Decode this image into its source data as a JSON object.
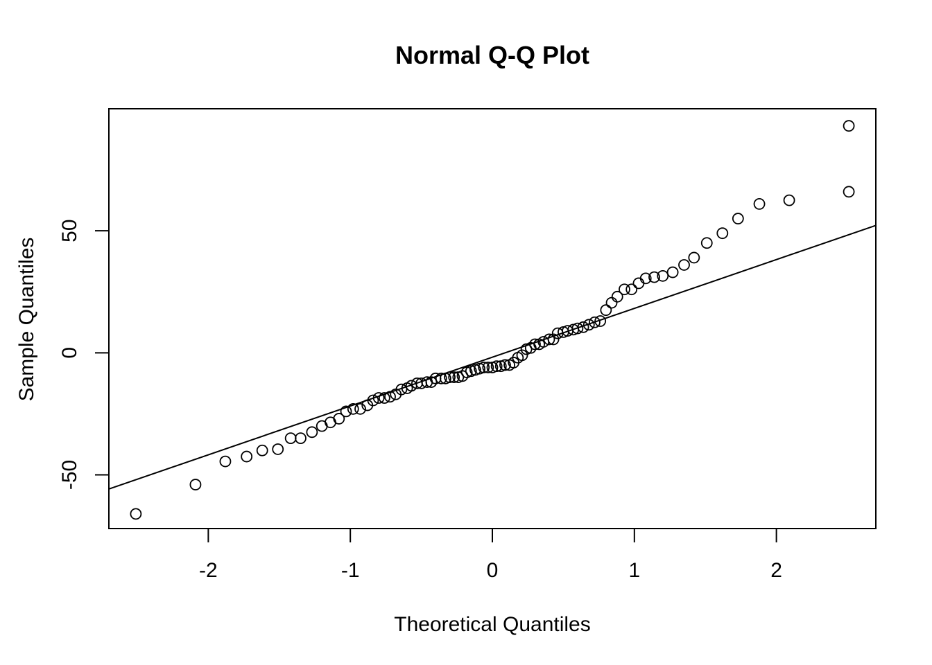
{
  "chart_data": {
    "type": "scatter",
    "title": "Normal Q-Q Plot",
    "xlabel": "Theoretical Quantiles",
    "ylabel": "Sample Quantiles",
    "xlim": [
      -2.7,
      2.7
    ],
    "ylim": [
      -72,
      100
    ],
    "xticks": [
      -2,
      -1,
      0,
      1,
      2
    ],
    "xtick_labels": [
      "-2",
      "-1",
      "0",
      "1",
      "2"
    ],
    "yticks": [
      -50,
      0,
      50
    ],
    "ytick_labels": [
      "-50",
      "0",
      "50"
    ],
    "grid": false,
    "legend": "none",
    "reference_line": {
      "intercept": -1.8,
      "slope": 20.0
    },
    "points": [
      {
        "x": -2.51,
        "y": -66
      },
      {
        "x": -2.09,
        "y": -54
      },
      {
        "x": -1.88,
        "y": -44.5
      },
      {
        "x": -1.73,
        "y": -42.5
      },
      {
        "x": -1.62,
        "y": -40
      },
      {
        "x": -1.51,
        "y": -39.5
      },
      {
        "x": -1.42,
        "y": -35
      },
      {
        "x": -1.35,
        "y": -35
      },
      {
        "x": -1.27,
        "y": -32.5
      },
      {
        "x": -1.2,
        "y": -30
      },
      {
        "x": -1.14,
        "y": -28.5
      },
      {
        "x": -1.08,
        "y": -27
      },
      {
        "x": -1.03,
        "y": -24
      },
      {
        "x": -0.98,
        "y": -23
      },
      {
        "x": -0.93,
        "y": -23
      },
      {
        "x": -0.88,
        "y": -21.5
      },
      {
        "x": -0.84,
        "y": -19.5
      },
      {
        "x": -0.8,
        "y": -18.5
      },
      {
        "x": -0.76,
        "y": -18.5
      },
      {
        "x": -0.72,
        "y": -18
      },
      {
        "x": -0.68,
        "y": -17
      },
      {
        "x": -0.64,
        "y": -15
      },
      {
        "x": -0.6,
        "y": -14.5
      },
      {
        "x": -0.57,
        "y": -13.5
      },
      {
        "x": -0.53,
        "y": -12.5
      },
      {
        "x": -0.5,
        "y": -12.5
      },
      {
        "x": -0.46,
        "y": -12
      },
      {
        "x": -0.43,
        "y": -12
      },
      {
        "x": -0.4,
        "y": -10.5
      },
      {
        "x": -0.36,
        "y": -10.5
      },
      {
        "x": -0.33,
        "y": -10.5
      },
      {
        "x": -0.3,
        "y": -10
      },
      {
        "x": -0.27,
        "y": -10
      },
      {
        "x": -0.24,
        "y": -10
      },
      {
        "x": -0.21,
        "y": -9.5
      },
      {
        "x": -0.18,
        "y": -8
      },
      {
        "x": -0.15,
        "y": -7.5
      },
      {
        "x": -0.12,
        "y": -7
      },
      {
        "x": -0.09,
        "y": -6.5
      },
      {
        "x": -0.06,
        "y": -6
      },
      {
        "x": -0.03,
        "y": -6
      },
      {
        "x": 0.0,
        "y": -6
      },
      {
        "x": 0.03,
        "y": -5.5
      },
      {
        "x": 0.06,
        "y": -5.5
      },
      {
        "x": 0.09,
        "y": -5
      },
      {
        "x": 0.12,
        "y": -5
      },
      {
        "x": 0.15,
        "y": -4
      },
      {
        "x": 0.18,
        "y": -2
      },
      {
        "x": 0.21,
        "y": -1
      },
      {
        "x": 0.24,
        "y": 1.5
      },
      {
        "x": 0.27,
        "y": 2
      },
      {
        "x": 0.3,
        "y": 3.5
      },
      {
        "x": 0.33,
        "y": 3.5
      },
      {
        "x": 0.36,
        "y": 4.5
      },
      {
        "x": 0.4,
        "y": 5.5
      },
      {
        "x": 0.43,
        "y": 5.5
      },
      {
        "x": 0.46,
        "y": 8
      },
      {
        "x": 0.5,
        "y": 8.5
      },
      {
        "x": 0.53,
        "y": 9
      },
      {
        "x": 0.57,
        "y": 9.5
      },
      {
        "x": 0.6,
        "y": 10
      },
      {
        "x": 0.64,
        "y": 10.5
      },
      {
        "x": 0.68,
        "y": 11.5
      },
      {
        "x": 0.72,
        "y": 12.5
      },
      {
        "x": 0.76,
        "y": 13
      },
      {
        "x": 0.8,
        "y": 17.5
      },
      {
        "x": 0.84,
        "y": 20.5
      },
      {
        "x": 0.88,
        "y": 23
      },
      {
        "x": 0.93,
        "y": 26
      },
      {
        "x": 0.98,
        "y": 26
      },
      {
        "x": 1.03,
        "y": 28.5
      },
      {
        "x": 1.08,
        "y": 30.5
      },
      {
        "x": 1.14,
        "y": 31
      },
      {
        "x": 1.2,
        "y": 31.5
      },
      {
        "x": 1.27,
        "y": 33
      },
      {
        "x": 1.35,
        "y": 36
      },
      {
        "x": 1.42,
        "y": 39
      },
      {
        "x": 1.51,
        "y": 45
      },
      {
        "x": 1.62,
        "y": 49
      },
      {
        "x": 1.73,
        "y": 55
      },
      {
        "x": 1.88,
        "y": 61
      },
      {
        "x": 2.09,
        "y": 62.5
      },
      {
        "x": 2.51,
        "y": 66
      },
      {
        "x": 2.51,
        "y": 93
      }
    ]
  }
}
